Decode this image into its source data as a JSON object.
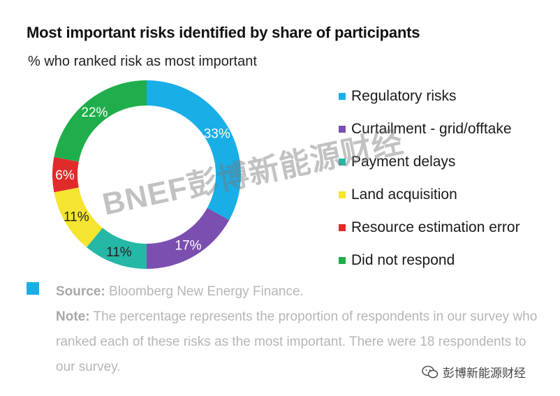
{
  "title": "Most important risks identified by share of participants",
  "subtitle": "% who ranked risk as most important",
  "chart_data": {
    "type": "pie",
    "donut": true,
    "title": "Most important risks identified by share of participants",
    "subtitle": "% who ranked risk as most important",
    "legend_position": "right",
    "slices": [
      {
        "label": "Regulatory risks",
        "value": 33,
        "value_label": "33%",
        "color": "#1aaee7"
      },
      {
        "label": "Curtailment - grid/offtake",
        "value": 17,
        "value_label": "17%",
        "color": "#7b4fb0"
      },
      {
        "label": "Payment delays",
        "value": 11,
        "value_label": "11%",
        "color": "#26b8a6"
      },
      {
        "label": "Land acquisition",
        "value": 11,
        "value_label": "11%",
        "color": "#f5e430"
      },
      {
        "label": "Resource estimation error",
        "value": 6,
        "value_label": "6%",
        "color": "#e02b2b"
      },
      {
        "label": "Did not respond",
        "value": 22,
        "value_label": "22%",
        "color": "#1fae4b"
      }
    ]
  },
  "source": {
    "box_color": "#1aaee7",
    "label": "Source:",
    "text": " Bloomberg New Energy Finance."
  },
  "note": {
    "label": "Note:",
    "text": " The percentage represents the proportion of respondents in our survey who ranked each of these risks as the most important. There were 18 respondents to our survey."
  },
  "watermark": "BNEF彭博新能源财经",
  "footer": {
    "brand": "彭博新能源财经",
    "icon": "wechat-icon"
  }
}
